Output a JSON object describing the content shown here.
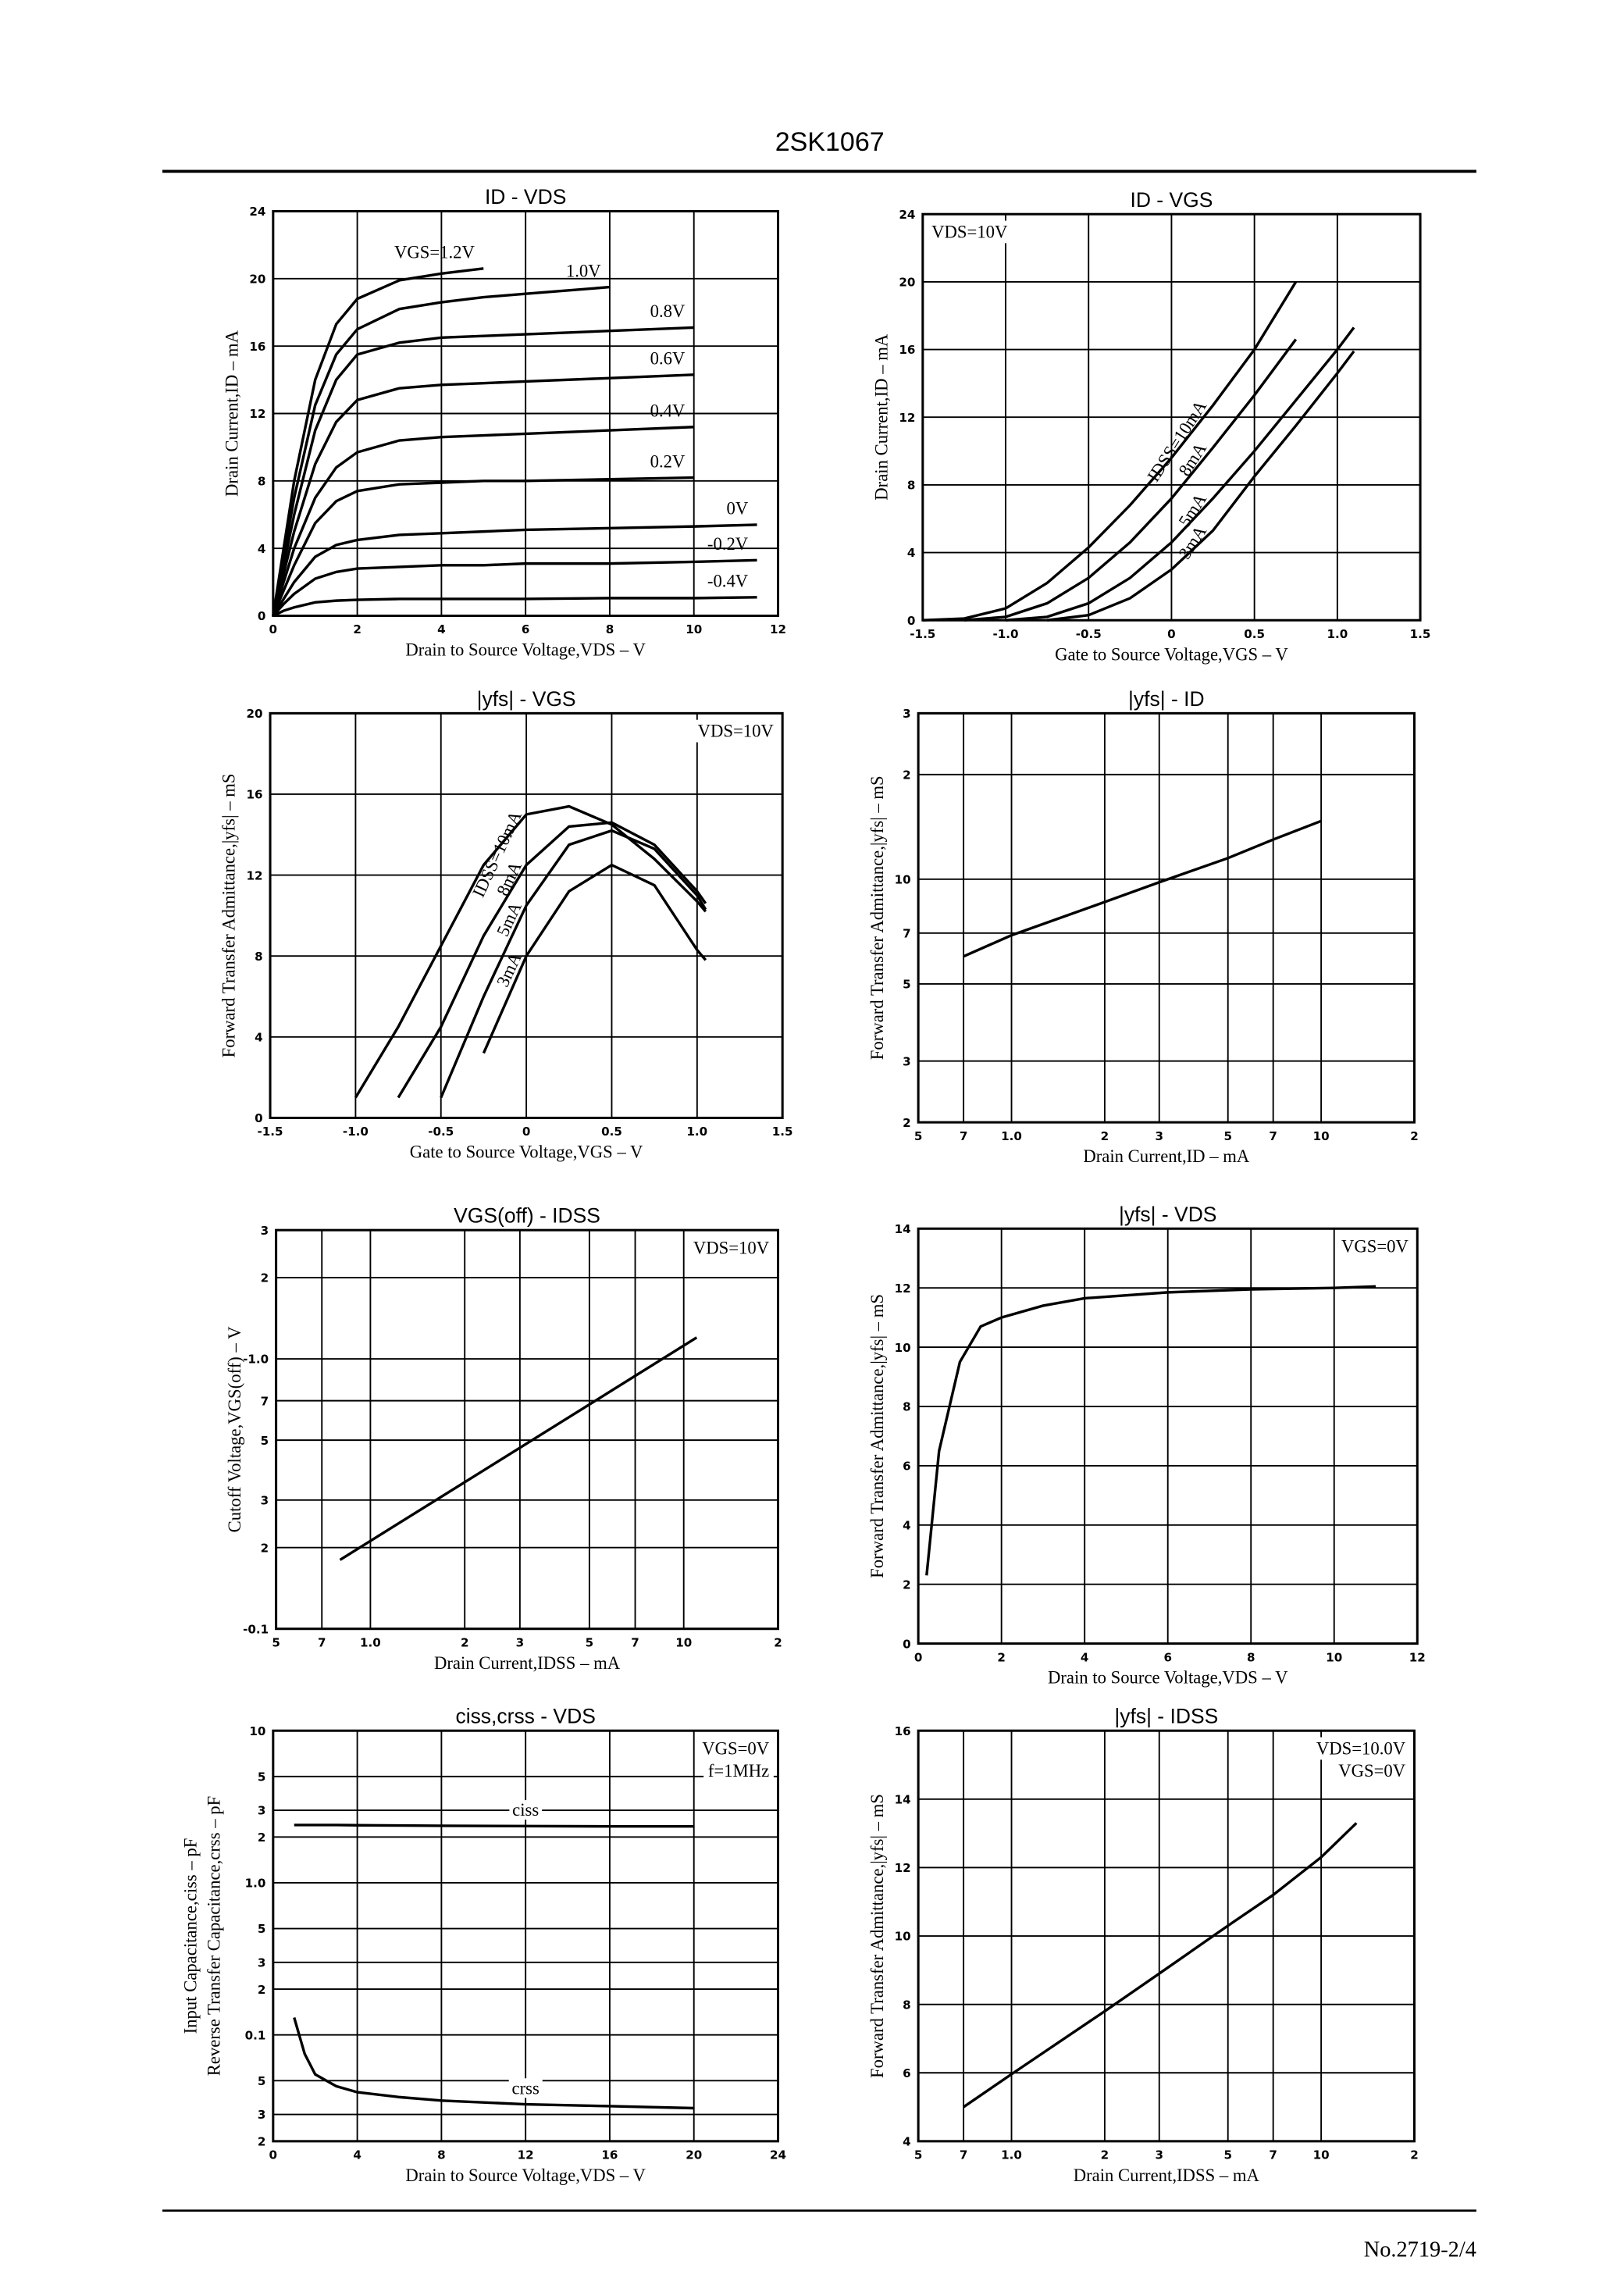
{
  "header": {
    "title": "2SK1067"
  },
  "chart_data": [
    {
      "type": "line",
      "title": "ID - VDS",
      "xlabel": "Drain to Source Voltage,VDS – V",
      "ylabel": "Drain Current,ID – mA",
      "grid": true,
      "color": "#000000",
      "xlim": [
        0,
        12
      ],
      "ylim": [
        0,
        24
      ],
      "xticks": [
        0,
        2,
        4,
        6,
        8,
        10,
        12
      ],
      "yticks": [
        0,
        4,
        8,
        12,
        16,
        20,
        24
      ],
      "x": [
        0,
        0.25,
        0.5,
        1,
        1.5,
        2,
        3,
        4,
        5,
        6,
        8,
        10,
        11.5
      ],
      "series": [
        {
          "name": "VGS=1.2V",
          "color": "#000000",
          "values": [
            0,
            4,
            8,
            14,
            17.3,
            18.8,
            19.9,
            20.3,
            20.6,
            null,
            null,
            null,
            null
          ]
        },
        {
          "name": "1.0V",
          "color": "#000000",
          "values": [
            0,
            3.5,
            7,
            12.5,
            15.5,
            17,
            18.2,
            18.6,
            18.9,
            19.1,
            19.5,
            null,
            null
          ]
        },
        {
          "name": "0.8V",
          "color": "#000000",
          "values": [
            0,
            3,
            6,
            11,
            14,
            15.5,
            16.2,
            16.5,
            16.6,
            16.7,
            16.9,
            17.1,
            null
          ]
        },
        {
          "name": "0.6V",
          "color": "#000000",
          "values": [
            0,
            2.5,
            5,
            9,
            11.5,
            12.8,
            13.5,
            13.7,
            13.8,
            13.9,
            14.1,
            14.3,
            null
          ]
        },
        {
          "name": "0.4V",
          "color": "#000000",
          "values": [
            0,
            2,
            4,
            7,
            8.8,
            9.7,
            10.4,
            10.6,
            10.7,
            10.8,
            11,
            11.2,
            null
          ]
        },
        {
          "name": "0.2V",
          "color": "#000000",
          "values": [
            0,
            1.5,
            3,
            5.5,
            6.8,
            7.4,
            7.8,
            7.9,
            8,
            8,
            8.1,
            8.2,
            null
          ]
        },
        {
          "name": "0V",
          "color": "#000000",
          "values": [
            0,
            1,
            2,
            3.5,
            4.2,
            4.5,
            4.8,
            4.9,
            5,
            5.1,
            5.2,
            5.3,
            5.4
          ]
        },
        {
          "name": "-0.2V",
          "color": "#000000",
          "values": [
            0,
            0.7,
            1.3,
            2.2,
            2.6,
            2.8,
            2.9,
            3,
            3,
            3.1,
            3.1,
            3.2,
            3.3
          ]
        },
        {
          "name": "-0.4V",
          "color": "#000000",
          "values": [
            0,
            0.3,
            0.5,
            0.8,
            0.9,
            0.95,
            1,
            1,
            1,
            1,
            1.05,
            1.05,
            1.1
          ]
        }
      ]
    },
    {
      "type": "line",
      "title": "ID - VGS",
      "xlabel": "Gate to Source Voltage,VGS – V",
      "ylabel": "Drain Current,ID – mA",
      "grid": true,
      "color": "#000000",
      "annotations": [
        "VDS=10V"
      ],
      "xlim": [
        -1.5,
        1.5
      ],
      "ylim": [
        0,
        24
      ],
      "xticks": [
        -1.5,
        {
          "value": -1,
          "label": "-1.0"
        },
        -0.5,
        0,
        0.5,
        {
          "value": 1,
          "label": "1.0"
        },
        1.5
      ],
      "yticks": [
        0,
        4,
        8,
        12,
        16,
        20,
        24
      ],
      "x": [
        -1.5,
        -1.25,
        -1,
        -0.75,
        -0.5,
        -0.25,
        0,
        0.25,
        0.5,
        0.75,
        1,
        1.1
      ],
      "series": [
        {
          "name": "IDSS=10mA",
          "color": "#000000",
          "values": [
            0,
            0.1,
            0.7,
            2.2,
            4.3,
            6.8,
            9.6,
            12.7,
            16,
            20,
            null,
            null
          ]
        },
        {
          "name": "8mA",
          "color": "#000000",
          "values": [
            null,
            0,
            0.2,
            1,
            2.5,
            4.6,
            7.2,
            10.2,
            13.3,
            16.6,
            null,
            null
          ]
        },
        {
          "name": "5mA",
          "color": "#000000",
          "values": [
            null,
            null,
            0,
            0.2,
            1,
            2.5,
            4.6,
            7.2,
            10,
            13,
            16,
            17.3
          ]
        },
        {
          "name": "3mA",
          "color": "#000000",
          "values": [
            null,
            null,
            null,
            0,
            0.3,
            1.3,
            3,
            5.3,
            8.5,
            11.5,
            14.6,
            15.9
          ]
        }
      ]
    },
    {
      "type": "line",
      "title": "|yfs| - VGS",
      "xlabel": "Gate to Source Voltage,VGS – V",
      "ylabel": "Forward Transfer Admittance,|yfs| – mS",
      "grid": true,
      "color": "#000000",
      "annotations": [
        "VDS=10V"
      ],
      "xlim": [
        -1.5,
        1.5
      ],
      "ylim": [
        0,
        20
      ],
      "xticks": [
        -1.5,
        {
          "value": -1,
          "label": "-1.0"
        },
        -0.5,
        0,
        0.5,
        {
          "value": 1,
          "label": "1.0"
        },
        1.5
      ],
      "yticks": [
        0,
        4,
        8,
        12,
        16,
        20
      ],
      "x": [
        -1,
        -0.75,
        -0.5,
        -0.25,
        0,
        0.25,
        0.5,
        0.75,
        1,
        1.05
      ],
      "series": [
        {
          "name": "IDSS=10mA",
          "color": "#000000",
          "values": [
            1,
            4.5,
            8.5,
            12.5,
            15,
            15.4,
            14.5,
            12.8,
            10.7,
            10.2
          ]
        },
        {
          "name": "8mA",
          "color": "#000000",
          "values": [
            null,
            1,
            4.5,
            9,
            12.5,
            14.4,
            14.6,
            13.5,
            11.2,
            10.6
          ]
        },
        {
          "name": "5mA",
          "color": "#000000",
          "values": [
            null,
            null,
            1,
            6,
            10.5,
            13.5,
            14.2,
            13.3,
            11,
            10.3
          ]
        },
        {
          "name": "3mA",
          "color": "#000000",
          "values": [
            null,
            null,
            null,
            3.2,
            8,
            11.2,
            12.5,
            11.5,
            8.3,
            7.8
          ]
        }
      ]
    },
    {
      "type": "line",
      "title": "|yfs| - ID",
      "xlabel": "Drain Current,ID – mA",
      "ylabel": "Forward Transfer Admittance,|yfs| – mS",
      "grid": true,
      "color": "#000000",
      "xlog": true,
      "ylog": true,
      "xlim": [
        0.5,
        20
      ],
      "ylim": [
        2,
        30
      ],
      "xticks": [
        {
          "value": 0.5,
          "label": "5"
        },
        {
          "value": 0.7,
          "label": "7"
        },
        {
          "value": 1,
          "label": "1.0"
        },
        2,
        3,
        5,
        7,
        10,
        {
          "value": 20,
          "label": "2"
        }
      ],
      "yticks": [
        2,
        3,
        5,
        7,
        10,
        {
          "value": 20,
          "label": "2"
        },
        {
          "value": 30,
          "label": "3"
        }
      ],
      "x": [
        0.7,
        1,
        2,
        3,
        5,
        7,
        10
      ],
      "series": [
        {
          "name": null,
          "color": "#000000",
          "values": [
            6,
            6.9,
            8.6,
            9.8,
            11.5,
            13,
            14.7
          ]
        }
      ]
    },
    {
      "type": "line",
      "title": "VGS(off) - IDSS",
      "xlabel": "Drain Current,IDSS – mA",
      "ylabel": "Cutoff Voltage,VGS(off) – V",
      "grid": true,
      "color": "#000000",
      "annotations": [
        "VDS=10V"
      ],
      "xlog": true,
      "ylog": true,
      "xlim": [
        0.5,
        20
      ],
      "ylim": [
        -0.1,
        -3
      ],
      "xticks": [
        {
          "value": 0.5,
          "label": "5"
        },
        {
          "value": 0.7,
          "label": "7"
        },
        {
          "value": 1,
          "label": "1.0"
        },
        2,
        3,
        5,
        7,
        10,
        {
          "value": 20,
          "label": "2"
        }
      ],
      "yticks": [
        {
          "value": -3,
          "label": "3"
        },
        {
          "value": -2,
          "label": "2"
        },
        {
          "value": -1,
          "label": "-1.0"
        },
        {
          "value": -0.7,
          "label": "7"
        },
        {
          "value": -0.5,
          "label": "5"
        },
        {
          "value": -0.3,
          "label": "3"
        },
        {
          "value": -0.2,
          "label": "2"
        },
        -0.1
      ],
      "x": [
        0.8,
        11
      ],
      "series": [
        {
          "name": null,
          "color": "#000000",
          "values": [
            -0.18,
            -1.2
          ]
        }
      ]
    },
    {
      "type": "line",
      "title": "|yfs| - VDS",
      "xlabel": "Drain to Source Voltage,VDS – V",
      "ylabel": "Forward Transfer Admittance,|yfs| – mS",
      "grid": true,
      "color": "#000000",
      "annotations": [
        "VGS=0V"
      ],
      "xlim": [
        0,
        12
      ],
      "ylim": [
        0,
        14
      ],
      "xticks": [
        0,
        2,
        4,
        6,
        8,
        10,
        12
      ],
      "yticks": [
        0,
        2,
        4,
        6,
        8,
        10,
        12,
        14
      ],
      "x": [
        0.2,
        0.5,
        1,
        1.5,
        2,
        3,
        4,
        6,
        8,
        10,
        11
      ],
      "series": [
        {
          "name": null,
          "color": "#000000",
          "values": [
            2.3,
            6.5,
            9.5,
            10.7,
            11,
            11.4,
            11.65,
            11.85,
            11.95,
            12,
            12.05
          ]
        }
      ]
    },
    {
      "type": "line",
      "title": "ciss,crss - VDS",
      "xlabel": "Drain to Source Voltage,VDS – V",
      "ylabel": [
        "Input Capacitance,ciss – pF",
        "Reverse Transfer Capacitance,crss – pF"
      ],
      "grid": true,
      "color": "#000000",
      "annotations": [
        "VGS=0V",
        "f=1MHz"
      ],
      "ylog": true,
      "xlim": [
        0,
        24
      ],
      "ylim": [
        0.02,
        10
      ],
      "xticks": [
        0,
        4,
        8,
        12,
        16,
        20,
        24
      ],
      "yticks": [
        {
          "value": 0.02,
          "label": "2"
        },
        {
          "value": 0.03,
          "label": "3"
        },
        {
          "value": 0.05,
          "label": "5"
        },
        0.1,
        {
          "value": 0.2,
          "label": "2"
        },
        {
          "value": 0.3,
          "label": "3"
        },
        {
          "value": 0.5,
          "label": "5"
        },
        {
          "value": 1,
          "label": "1.0"
        },
        2,
        3,
        5,
        10
      ],
      "x": [
        1,
        1.5,
        2,
        3,
        4,
        6,
        8,
        12,
        16,
        20
      ],
      "series": [
        {
          "name": "ciss",
          "color": "#000000",
          "values": [
            2.4,
            2.4,
            2.4,
            2.4,
            2.39,
            2.38,
            2.37,
            2.36,
            2.35,
            2.35
          ]
        },
        {
          "name": "crss",
          "color": "#000000",
          "values": [
            0.13,
            0.075,
            0.055,
            0.046,
            0.042,
            0.039,
            0.037,
            0.035,
            0.034,
            0.033
          ]
        }
      ]
    },
    {
      "type": "line",
      "title": "|yfs| - IDSS",
      "xlabel": "Drain Current,IDSS – mA",
      "ylabel": "Forward Transfer Admittance,|yfs| – mS",
      "grid": true,
      "color": "#000000",
      "annotations": [
        "VDS=10.0V",
        "VGS=0V"
      ],
      "xlog": true,
      "xlim": [
        0.5,
        20
      ],
      "ylim": [
        4,
        16
      ],
      "xticks": [
        {
          "value": 0.5,
          "label": "5"
        },
        {
          "value": 0.7,
          "label": "7"
        },
        {
          "value": 1,
          "label": "1.0"
        },
        2,
        3,
        5,
        7,
        10,
        {
          "value": 20,
          "label": "2"
        }
      ],
      "yticks": [
        4,
        6,
        8,
        10,
        12,
        14,
        16
      ],
      "x": [
        0.7,
        1,
        2,
        3,
        5,
        7,
        10,
        13
      ],
      "series": [
        {
          "name": null,
          "color": "#000000",
          "values": [
            5,
            5.96,
            7.8,
            8.9,
            10.3,
            11.2,
            12.3,
            13.3
          ]
        }
      ]
    }
  ],
  "footer": {
    "page_number": "No.2719-2/4"
  }
}
